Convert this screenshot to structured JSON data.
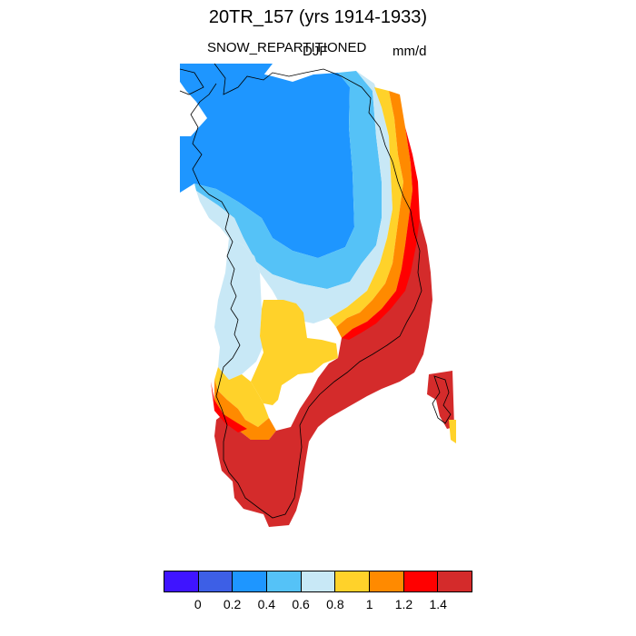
{
  "title": "20TR_157 (yrs 1914-1933)",
  "variable_label": "SNOW_REPARTITIONED",
  "season_label": "DJF",
  "units_label": "mm/d",
  "legend": {
    "colors": [
      "#3f14ff",
      "#3d5fe6",
      "#1e96ff",
      "#55c2f7",
      "#c8e8f6",
      "#ffd22a",
      "#ff8a00",
      "#ff0000",
      "#d42b2b"
    ],
    "labels": [
      "0",
      "0.2",
      "0.4",
      "0.6",
      "0.8",
      "1",
      "1.2",
      "1.4"
    ]
  },
  "map": {
    "region_fill_colors": {
      "blue": "#1e96ff",
      "light_blue": "#55c2f7",
      "pale_blue": "#c8e8f6",
      "yellow": "#ffd22a",
      "orange": "#ff8a00",
      "red": "#ff0000",
      "dark_red": "#d42b2b"
    }
  }
}
